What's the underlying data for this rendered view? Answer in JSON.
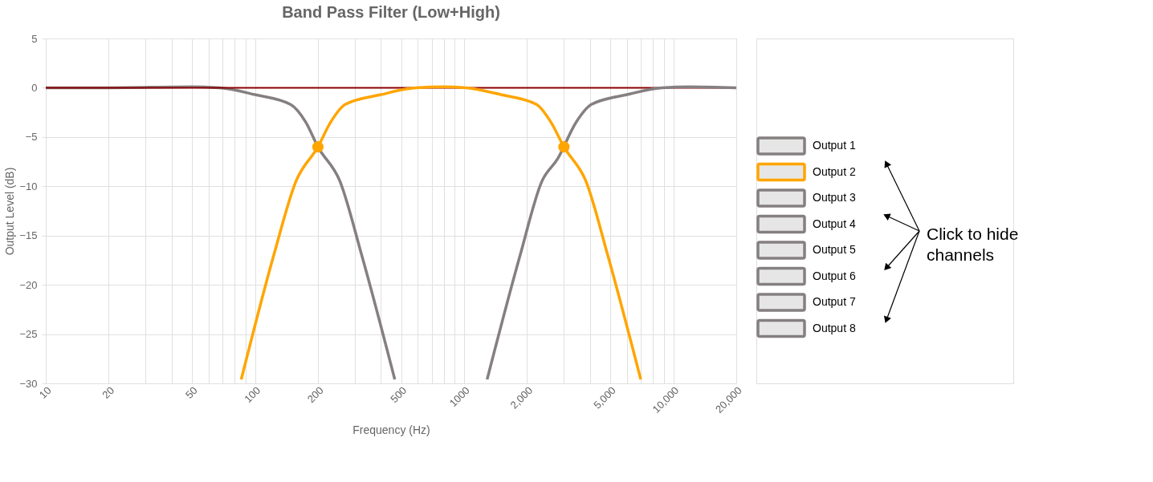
{
  "chart_data": {
    "type": "line",
    "title": "Band Pass Filter (Low+High)",
    "xlabel": "Frequency (Hz)",
    "ylabel": "Output Level (dB)",
    "log": "x",
    "grid": true,
    "legend": "right",
    "line_style": "solid",
    "marker": "none",
    "xlim": [
      10,
      20000
    ],
    "ylim": [
      -30,
      5
    ],
    "xticks": [
      {
        "value": 10,
        "label": "10"
      },
      {
        "value": 20,
        "label": "20"
      },
      {
        "value": 30,
        "label": null
      },
      {
        "value": 40,
        "label": null
      },
      {
        "value": 50,
        "label": "50"
      },
      {
        "value": 60,
        "label": null
      },
      {
        "value": 70,
        "label": null
      },
      {
        "value": 80,
        "label": null
      },
      {
        "value": 90,
        "label": null
      },
      {
        "value": 100,
        "label": "100"
      },
      {
        "value": 200,
        "label": "200"
      },
      {
        "value": 300,
        "label": null
      },
      {
        "value": 400,
        "label": null
      },
      {
        "value": 500,
        "label": "500"
      },
      {
        "value": 600,
        "label": null
      },
      {
        "value": 700,
        "label": null
      },
      {
        "value": 800,
        "label": null
      },
      {
        "value": 900,
        "label": null
      },
      {
        "value": 1000,
        "label": "1000"
      },
      {
        "value": 2000,
        "label": "2,000"
      },
      {
        "value": 3000,
        "label": null
      },
      {
        "value": 4000,
        "label": null
      },
      {
        "value": 5000,
        "label": "5,000"
      },
      {
        "value": 6000,
        "label": null
      },
      {
        "value": 7000,
        "label": null
      },
      {
        "value": 8000,
        "label": null
      },
      {
        "value": 9000,
        "label": null
      },
      {
        "value": 10000,
        "label": "10,000"
      },
      {
        "value": 20000,
        "label": "20,000"
      }
    ],
    "yticks": [
      5,
      0,
      -5,
      -10,
      -15,
      -20,
      -25,
      -30
    ],
    "ref_lines": [
      {
        "axis": "y",
        "value": 0,
        "color": "#8b0000"
      }
    ],
    "annotations": [
      "Click to hide channels"
    ],
    "series": [
      {
        "name": "Output 1",
        "color": "#857f80",
        "x": [
          10,
          20,
          50,
          68,
          100,
          148,
          175,
          200,
          255,
          324,
          466
        ],
        "values": [
          0,
          0,
          0.1,
          0,
          -0.7,
          -1.7,
          -3.5,
          -6,
          -9.5,
          -17,
          -29.6
        ]
      },
      {
        "name": "Output 2",
        "color": "#ffa500",
        "x": [
          86,
          123,
          157,
          200,
          230,
          270,
          400,
          588,
          800,
          1020,
          1500,
          2220,
          2600,
          3000,
          3825,
          4860,
          6990
        ],
        "values": [
          -29.6,
          -17,
          -9.5,
          -6,
          -3.5,
          -1.7,
          -0.7,
          0,
          0.1,
          0,
          -0.7,
          -1.7,
          -3.5,
          -6,
          -9.5,
          -17,
          -29.6
        ]
      },
      {
        "name": "Output 3",
        "color": "#857f80",
        "x": [
          1288,
          1852,
          2353,
          2800,
          3430,
          4054,
          6000,
          8824,
          12000,
          20000
        ],
        "values": [
          -29.6,
          -17,
          -9.5,
          -7.2,
          -3.5,
          -1.7,
          -0.7,
          0,
          0.1,
          0
        ]
      },
      {
        "name": "Output 4",
        "color": "#857f80"
      },
      {
        "name": "Output 5",
        "color": "#857f80"
      },
      {
        "name": "Output 6",
        "color": "#857f80"
      },
      {
        "name": "Output 7",
        "color": "#857f80"
      },
      {
        "name": "Output 8",
        "color": "#857f80"
      },
      {
        "type": "scatter",
        "marker": "circle",
        "color": "#ffa500",
        "x": [
          200,
          3000
        ],
        "values": [
          -6,
          -6
        ]
      }
    ]
  }
}
